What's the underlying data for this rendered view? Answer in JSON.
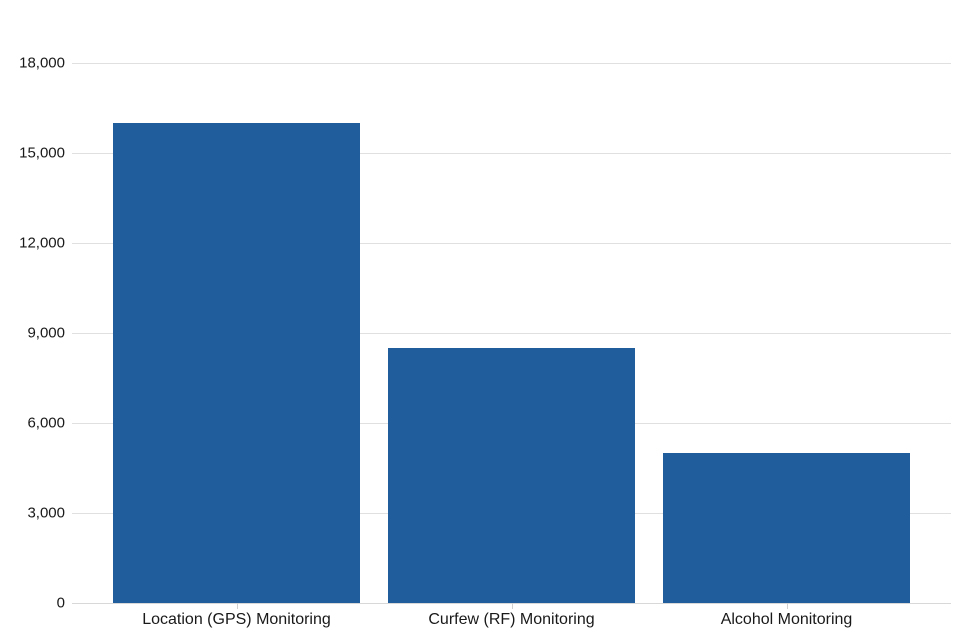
{
  "chart_data": {
    "type": "bar",
    "title": "",
    "xlabel": "",
    "ylabel": "",
    "categories": [
      "Location (GPS) Monitoring",
      "Curfew (RF) Monitoring",
      "Alcohol Monitoring"
    ],
    "values": [
      16000,
      8500,
      5000
    ],
    "ylim": [
      0,
      18000
    ],
    "ytick_values": [
      0,
      3000,
      6000,
      9000,
      12000,
      15000,
      18000
    ],
    "ytick_labels": [
      "0",
      "3,000",
      "6,000",
      "9,000",
      "12,000",
      "15,000",
      "18,000"
    ],
    "grid": "horizontal",
    "legend": "none",
    "colors": {
      "bar": "#205d9c",
      "gridline": "#e0e0e0",
      "baseline": "#d8d8d8",
      "axis_text": "#191919",
      "background": "#ffffff"
    }
  }
}
